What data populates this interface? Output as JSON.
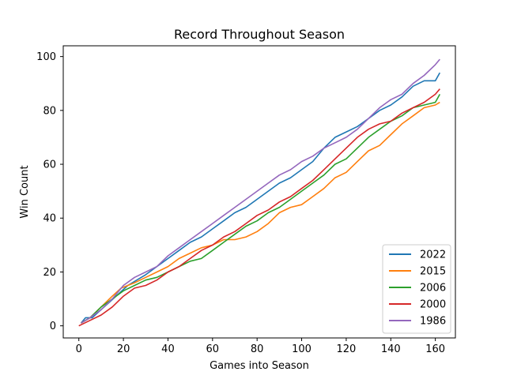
{
  "chart_data": {
    "type": "line",
    "title": "Record Throughout Season",
    "xlabel": "Games into Season",
    "ylabel": "Win Count",
    "xlim": [
      -7,
      169
    ],
    "ylim": [
      -4.5,
      104
    ],
    "xticks": [
      0,
      20,
      40,
      60,
      80,
      100,
      120,
      140,
      160
    ],
    "yticks": [
      0,
      20,
      40,
      60,
      80,
      100
    ],
    "grid": false,
    "legend_position": "bottom-right",
    "series": [
      {
        "name": "2022",
        "color": "#1f77b4",
        "points": [
          [
            1,
            1
          ],
          [
            3,
            3
          ],
          [
            6,
            3
          ],
          [
            10,
            6
          ],
          [
            14,
            9
          ],
          [
            18,
            12
          ],
          [
            22,
            15
          ],
          [
            26,
            17
          ],
          [
            30,
            19
          ],
          [
            35,
            22
          ],
          [
            40,
            25
          ],
          [
            45,
            28
          ],
          [
            50,
            31
          ],
          [
            55,
            33
          ],
          [
            60,
            36
          ],
          [
            65,
            39
          ],
          [
            70,
            42
          ],
          [
            75,
            44
          ],
          [
            80,
            47
          ],
          [
            85,
            50
          ],
          [
            90,
            53
          ],
          [
            95,
            55
          ],
          [
            100,
            58
          ],
          [
            105,
            61
          ],
          [
            110,
            66
          ],
          [
            115,
            70
          ],
          [
            120,
            72
          ],
          [
            125,
            74
          ],
          [
            130,
            77
          ],
          [
            135,
            80
          ],
          [
            140,
            82
          ],
          [
            145,
            85
          ],
          [
            150,
            89
          ],
          [
            155,
            91
          ],
          [
            160,
            91
          ],
          [
            162,
            94
          ]
        ]
      },
      {
        "name": "2015",
        "color": "#ff7f0e",
        "points": [
          [
            1,
            1
          ],
          [
            5,
            3
          ],
          [
            10,
            7
          ],
          [
            15,
            11
          ],
          [
            19,
            14
          ],
          [
            25,
            16
          ],
          [
            30,
            18
          ],
          [
            35,
            20
          ],
          [
            40,
            22
          ],
          [
            45,
            25
          ],
          [
            50,
            27
          ],
          [
            55,
            29
          ],
          [
            60,
            30
          ],
          [
            65,
            32
          ],
          [
            70,
            32
          ],
          [
            75,
            33
          ],
          [
            80,
            35
          ],
          [
            85,
            38
          ],
          [
            90,
            42
          ],
          [
            95,
            44
          ],
          [
            100,
            45
          ],
          [
            105,
            48
          ],
          [
            110,
            51
          ],
          [
            115,
            55
          ],
          [
            120,
            57
          ],
          [
            125,
            61
          ],
          [
            130,
            65
          ],
          [
            135,
            67
          ],
          [
            140,
            71
          ],
          [
            145,
            75
          ],
          [
            150,
            78
          ],
          [
            155,
            81
          ],
          [
            160,
            82
          ],
          [
            162,
            83
          ]
        ]
      },
      {
        "name": "2006",
        "color": "#2ca02c",
        "points": [
          [
            1,
            1
          ],
          [
            5,
            3
          ],
          [
            10,
            7
          ],
          [
            15,
            10
          ],
          [
            20,
            13
          ],
          [
            25,
            15
          ],
          [
            30,
            17
          ],
          [
            35,
            18
          ],
          [
            40,
            20
          ],
          [
            45,
            22
          ],
          [
            50,
            24
          ],
          [
            55,
            25
          ],
          [
            60,
            28
          ],
          [
            65,
            31
          ],
          [
            70,
            34
          ],
          [
            75,
            37
          ],
          [
            80,
            39
          ],
          [
            85,
            42
          ],
          [
            90,
            44
          ],
          [
            95,
            47
          ],
          [
            100,
            50
          ],
          [
            105,
            53
          ],
          [
            110,
            56
          ],
          [
            115,
            60
          ],
          [
            120,
            62
          ],
          [
            125,
            66
          ],
          [
            130,
            70
          ],
          [
            135,
            73
          ],
          [
            140,
            76
          ],
          [
            145,
            78
          ],
          [
            150,
            81
          ],
          [
            155,
            82
          ],
          [
            160,
            83
          ],
          [
            162,
            86
          ]
        ]
      },
      {
        "name": "2000",
        "color": "#d62728",
        "points": [
          [
            0,
            0
          ],
          [
            5,
            2
          ],
          [
            10,
            4
          ],
          [
            15,
            7
          ],
          [
            20,
            11
          ],
          [
            25,
            14
          ],
          [
            30,
            15
          ],
          [
            35,
            17
          ],
          [
            40,
            20
          ],
          [
            45,
            22
          ],
          [
            50,
            25
          ],
          [
            55,
            28
          ],
          [
            60,
            30
          ],
          [
            65,
            33
          ],
          [
            70,
            35
          ],
          [
            75,
            38
          ],
          [
            80,
            41
          ],
          [
            85,
            43
          ],
          [
            90,
            46
          ],
          [
            95,
            48
          ],
          [
            100,
            51
          ],
          [
            105,
            54
          ],
          [
            110,
            58
          ],
          [
            115,
            62
          ],
          [
            120,
            66
          ],
          [
            125,
            70
          ],
          [
            130,
            73
          ],
          [
            135,
            75
          ],
          [
            140,
            76
          ],
          [
            145,
            79
          ],
          [
            150,
            81
          ],
          [
            155,
            83
          ],
          [
            160,
            86
          ],
          [
            162,
            88
          ]
        ]
      },
      {
        "name": "1986",
        "color": "#9467bd",
        "points": [
          [
            1,
            1
          ],
          [
            5,
            3
          ],
          [
            10,
            6
          ],
          [
            15,
            10
          ],
          [
            20,
            15
          ],
          [
            25,
            18
          ],
          [
            30,
            20
          ],
          [
            35,
            22
          ],
          [
            40,
            26
          ],
          [
            45,
            29
          ],
          [
            50,
            32
          ],
          [
            55,
            35
          ],
          [
            60,
            38
          ],
          [
            65,
            41
          ],
          [
            70,
            44
          ],
          [
            75,
            47
          ],
          [
            80,
            50
          ],
          [
            85,
            53
          ],
          [
            90,
            56
          ],
          [
            95,
            58
          ],
          [
            100,
            61
          ],
          [
            105,
            63
          ],
          [
            110,
            66
          ],
          [
            115,
            68
          ],
          [
            120,
            70
          ],
          [
            125,
            73
          ],
          [
            130,
            77
          ],
          [
            135,
            81
          ],
          [
            140,
            84
          ],
          [
            145,
            86
          ],
          [
            150,
            90
          ],
          [
            155,
            93
          ],
          [
            160,
            97
          ],
          [
            162,
            99
          ]
        ]
      }
    ]
  }
}
